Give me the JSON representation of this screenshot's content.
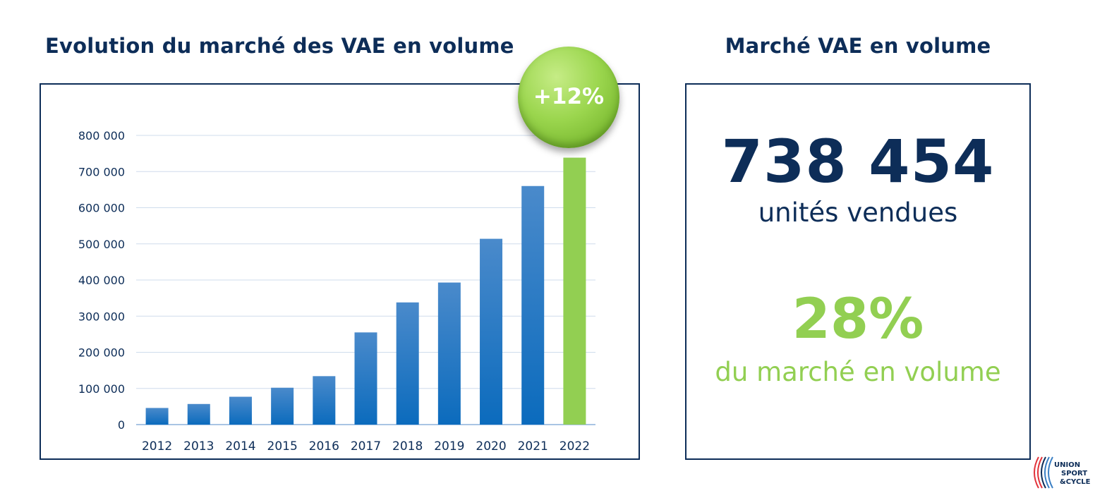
{
  "header": {
    "left_title": "Evolution du marché des VAE en volume",
    "right_title": "Marché VAE en volume"
  },
  "badge": {
    "label": "+12%"
  },
  "kpi": {
    "units_value": "738 454",
    "units_label": "unités vendues",
    "share_value": "28%",
    "share_label": "du marché en volume"
  },
  "logo": {
    "text_lines": [
      "UNION",
      "SPORT",
      "&CYCLE"
    ]
  },
  "colors": {
    "navy": "#0d2d58",
    "bar_blue_top": "#4a8acb",
    "bar_blue_bottom": "#0b6bbd",
    "bar_green": "#92cf52",
    "grid": "#cfdcec",
    "axis_line": "#a9c4e4"
  },
  "chart_data": {
    "type": "bar",
    "title": "Evolution du marché des VAE en volume",
    "xlabel": "",
    "ylabel": "",
    "categories": [
      "2012",
      "2013",
      "2014",
      "2015",
      "2016",
      "2017",
      "2018",
      "2019",
      "2020",
      "2021",
      "2022"
    ],
    "values": [
      46000,
      57000,
      77000,
      102000,
      134000,
      255000,
      338000,
      393000,
      514000,
      660000,
      738454
    ],
    "highlight_index": 10,
    "ylim": [
      0,
      800000
    ],
    "yticks": [
      0,
      100000,
      200000,
      300000,
      400000,
      500000,
      600000,
      700000,
      800000
    ],
    "ytick_labels": [
      "0",
      "100 000",
      "200 000",
      "300 000",
      "400 000",
      "500 000",
      "600 000",
      "700 000",
      "800 000"
    ],
    "grid": true,
    "legend": "none"
  }
}
